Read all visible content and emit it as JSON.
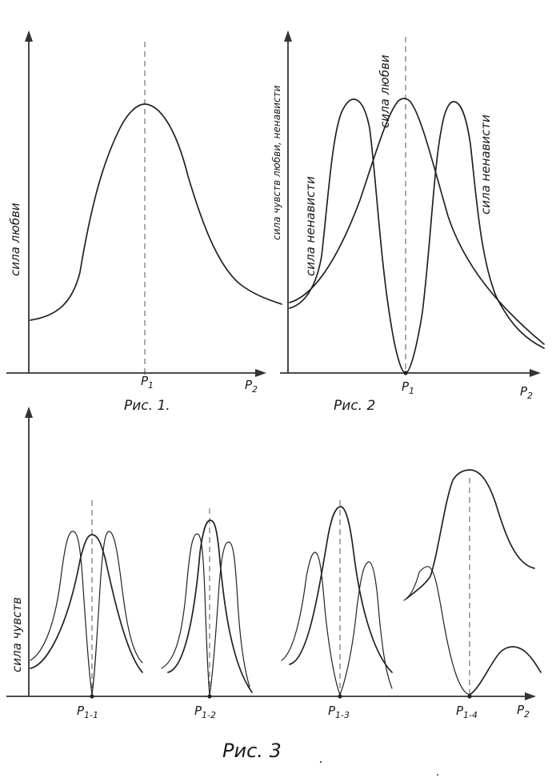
{
  "figures": {
    "fig1": {
      "caption": "Рис. 1.",
      "ylabel": "сила любви",
      "tick_p1_main": "P",
      "tick_p1_sub": "1",
      "tick_p2_main": "P",
      "tick_p2_sub": "2"
    },
    "fig2": {
      "caption": "Рис. 2",
      "ylabel": "сила чувств любви, ненависти",
      "label_hate_left": "сила ненависти",
      "label_love": "сила любви",
      "label_hate_right": "сила ненависти",
      "tick_p1_main": "P",
      "tick_p1_sub": "1",
      "tick_p2_main": "P",
      "tick_p2_sub": "2"
    },
    "fig3": {
      "caption": "Рис. 3",
      "ylabel": "сила чувств",
      "ticks": [
        {
          "main": "P",
          "sub": "1-1"
        },
        {
          "main": "P",
          "sub": "1-2"
        },
        {
          "main": "P",
          "sub": "1-3"
        },
        {
          "main": "P",
          "sub": "1-4"
        }
      ],
      "tick_p2_main": "P",
      "tick_p2_sub": "2"
    }
  }
}
